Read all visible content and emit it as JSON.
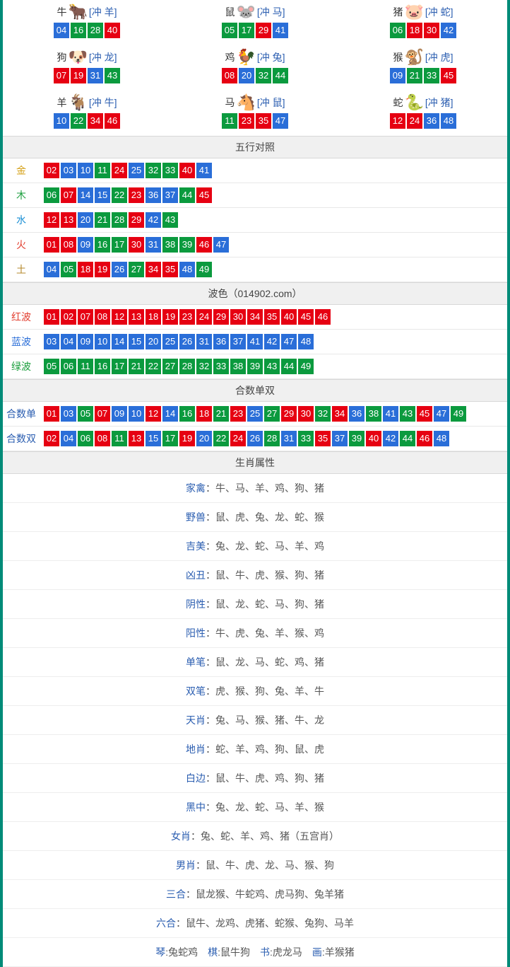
{
  "colors": {
    "red": "#e60012",
    "blue": "#2a6ed8",
    "green": "#0b9a3e",
    "border": "#008b78",
    "link": "#2a5db0",
    "gold": "#d4a017",
    "wood": "#1a9e3c",
    "water": "#1a8fd4",
    "fire": "#e23d2e",
    "earth": "#b5892b",
    "redwave": "#e23d2e",
    "bluewave": "#2a6ed8",
    "greenwave": "#1a9e3c"
  },
  "ball_color_key": {
    "red": [
      "01",
      "02",
      "07",
      "08",
      "12",
      "13",
      "18",
      "19",
      "23",
      "24",
      "29",
      "30",
      "34",
      "35",
      "40",
      "45",
      "46"
    ],
    "blue": [
      "03",
      "04",
      "09",
      "10",
      "14",
      "15",
      "20",
      "25",
      "26",
      "31",
      "36",
      "37",
      "41",
      "42",
      "47",
      "48"
    ],
    "green": [
      "05",
      "06",
      "11",
      "16",
      "17",
      "21",
      "22",
      "27",
      "28",
      "32",
      "33",
      "38",
      "39",
      "43",
      "44",
      "49"
    ]
  },
  "zodiac": [
    {
      "name": "牛",
      "emoji": "🐂",
      "chong": "[冲 羊]",
      "balls": [
        "04",
        "16",
        "28",
        "40"
      ]
    },
    {
      "name": "鼠",
      "emoji": "🐭",
      "chong": "[冲 马]",
      "balls": [
        "05",
        "17",
        "29",
        "41"
      ]
    },
    {
      "name": "猪",
      "emoji": "🐷",
      "chong": "[冲 蛇]",
      "balls": [
        "06",
        "18",
        "30",
        "42"
      ]
    },
    {
      "name": "狗",
      "emoji": "🐶",
      "chong": "[冲 龙]",
      "balls": [
        "07",
        "19",
        "31",
        "43"
      ]
    },
    {
      "name": "鸡",
      "emoji": "🐓",
      "chong": "[冲 兔]",
      "balls": [
        "08",
        "20",
        "32",
        "44"
      ]
    },
    {
      "name": "猴",
      "emoji": "🐒",
      "chong": "[冲 虎]",
      "balls": [
        "09",
        "21",
        "33",
        "45"
      ]
    },
    {
      "name": "羊",
      "emoji": "🐐",
      "chong": "[冲 牛]",
      "balls": [
        "10",
        "22",
        "34",
        "46"
      ]
    },
    {
      "name": "马",
      "emoji": "🐴",
      "chong": "[冲 鼠]",
      "balls": [
        "11",
        "23",
        "35",
        "47"
      ]
    },
    {
      "name": "蛇",
      "emoji": "🐍",
      "chong": "[冲 猪]",
      "balls": [
        "12",
        "24",
        "36",
        "48"
      ]
    }
  ],
  "sections": {
    "wuxing_title": "五行对照",
    "wuxing": [
      {
        "label": "金",
        "color_key": "gold",
        "balls": [
          "02",
          "03",
          "10",
          "11",
          "24",
          "25",
          "32",
          "33",
          "40",
          "41"
        ]
      },
      {
        "label": "木",
        "color_key": "wood",
        "balls": [
          "06",
          "07",
          "14",
          "15",
          "22",
          "23",
          "36",
          "37",
          "44",
          "45"
        ]
      },
      {
        "label": "水",
        "color_key": "water",
        "balls": [
          "12",
          "13",
          "20",
          "21",
          "28",
          "29",
          "42",
          "43"
        ]
      },
      {
        "label": "火",
        "color_key": "fire",
        "balls": [
          "01",
          "08",
          "09",
          "16",
          "17",
          "30",
          "31",
          "38",
          "39",
          "46",
          "47"
        ]
      },
      {
        "label": "土",
        "color_key": "earth",
        "balls": [
          "04",
          "05",
          "18",
          "19",
          "26",
          "27",
          "34",
          "35",
          "48",
          "49"
        ]
      }
    ],
    "bose_title": "波色（014902.com）",
    "bose": [
      {
        "label": "红波",
        "color_key": "redwave",
        "balls": [
          "01",
          "02",
          "07",
          "08",
          "12",
          "13",
          "18",
          "19",
          "23",
          "24",
          "29",
          "30",
          "34",
          "35",
          "40",
          "45",
          "46"
        ]
      },
      {
        "label": "蓝波",
        "color_key": "bluewave",
        "balls": [
          "03",
          "04",
          "09",
          "10",
          "14",
          "15",
          "20",
          "25",
          "26",
          "31",
          "36",
          "37",
          "41",
          "42",
          "47",
          "48"
        ]
      },
      {
        "label": "绿波",
        "color_key": "greenwave",
        "balls": [
          "05",
          "06",
          "11",
          "16",
          "17",
          "21",
          "22",
          "27",
          "28",
          "32",
          "33",
          "38",
          "39",
          "43",
          "44",
          "49"
        ]
      }
    ],
    "heshu_title": "合数单双",
    "heshu": [
      {
        "label": "合数单",
        "color_key": "link",
        "balls": [
          "01",
          "03",
          "05",
          "07",
          "09",
          "10",
          "12",
          "14",
          "16",
          "18",
          "21",
          "23",
          "25",
          "27",
          "29",
          "30",
          "32",
          "34",
          "36",
          "38",
          "41",
          "43",
          "45",
          "47",
          "49"
        ]
      },
      {
        "label": "合数双",
        "color_key": "link",
        "balls": [
          "02",
          "04",
          "06",
          "08",
          "11",
          "13",
          "15",
          "17",
          "19",
          "20",
          "22",
          "24",
          "26",
          "28",
          "31",
          "33",
          "35",
          "37",
          "39",
          "40",
          "42",
          "44",
          "46",
          "48"
        ]
      }
    ],
    "shuxing_title": "生肖属性",
    "shuxing": [
      {
        "key": "家禽",
        "val": "：牛、马、羊、鸡、狗、猪"
      },
      {
        "key": "野兽",
        "val": "：鼠、虎、兔、龙、蛇、猴"
      },
      {
        "key": "吉美",
        "val": "：兔、龙、蛇、马、羊、鸡"
      },
      {
        "key": "凶丑",
        "val": "：鼠、牛、虎、猴、狗、猪"
      },
      {
        "key": "阴性",
        "val": "：鼠、龙、蛇、马、狗、猪"
      },
      {
        "key": "阳性",
        "val": "：牛、虎、兔、羊、猴、鸡"
      },
      {
        "key": "单笔",
        "val": "：鼠、龙、马、蛇、鸡、猪"
      },
      {
        "key": "双笔",
        "val": "：虎、猴、狗、兔、羊、牛"
      },
      {
        "key": "天肖",
        "val": "：兔、马、猴、猪、牛、龙"
      },
      {
        "key": "地肖",
        "val": "：蛇、羊、鸡、狗、鼠、虎"
      },
      {
        "key": "白边",
        "val": "：鼠、牛、虎、鸡、狗、猪"
      },
      {
        "key": "黑中",
        "val": "：兔、龙、蛇、马、羊、猴"
      },
      {
        "key": "女肖",
        "val": "：兔、蛇、羊、鸡、猪（五宫肖）"
      },
      {
        "key": "男肖",
        "val": "：鼠、牛、虎、龙、马、猴、狗"
      },
      {
        "key": "三合",
        "val": "：鼠龙猴、牛蛇鸡、虎马狗、兔羊猪"
      },
      {
        "key": "六合",
        "val": "：鼠牛、龙鸡、虎猪、蛇猴、兔狗、马羊"
      }
    ],
    "qin_row": [
      {
        "key": "琴",
        "val": ":兔蛇鸡"
      },
      {
        "key": "棋",
        "val": ":鼠牛狗"
      },
      {
        "key": "书",
        "val": ":虎龙马"
      },
      {
        "key": "画",
        "val": ":羊猴猪"
      }
    ]
  }
}
